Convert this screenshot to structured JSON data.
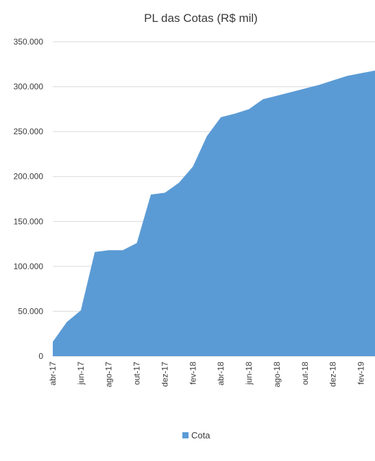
{
  "chart_data": {
    "type": "area",
    "title": "PL das Cotas (R$ mil)",
    "xlabel": "",
    "ylabel": "",
    "ylim": [
      0,
      350000
    ],
    "yticks": [
      0,
      50000,
      100000,
      150000,
      200000,
      250000,
      300000,
      350000
    ],
    "ytick_labels": [
      "0",
      "50.000",
      "100.000",
      "150.000",
      "200.000",
      "250.000",
      "300.000",
      "350.000"
    ],
    "grid": true,
    "legend_position": "bottom",
    "x": [
      "abr-17",
      "mai-17",
      "jun-17",
      "jul-17",
      "ago-17",
      "set-17",
      "out-17",
      "nov-17",
      "dez-17",
      "jan-18",
      "fev-18",
      "mar-18",
      "abr-18",
      "mai-18",
      "jun-18",
      "jul-18",
      "ago-18",
      "set-18",
      "out-18",
      "nov-18",
      "dez-18",
      "jan-19",
      "fev-19",
      "mar-19"
    ],
    "x_tick_labels": [
      "abr-17",
      "jun-17",
      "ago-17",
      "out-17",
      "dez-17",
      "fev-18",
      "abr-18",
      "jun-18",
      "ago-18",
      "out-18",
      "dez-18",
      "fev-19"
    ],
    "series": [
      {
        "name": "Cota",
        "color": "#5b9bd5",
        "values": [
          16000,
          38000,
          51000,
          116000,
          118000,
          118000,
          126000,
          180000,
          182000,
          193000,
          211000,
          245000,
          266000,
          270000,
          275000,
          286000,
          290000,
          294000,
          298000,
          302000,
          307000,
          312000,
          315000,
          318000
        ]
      }
    ]
  }
}
